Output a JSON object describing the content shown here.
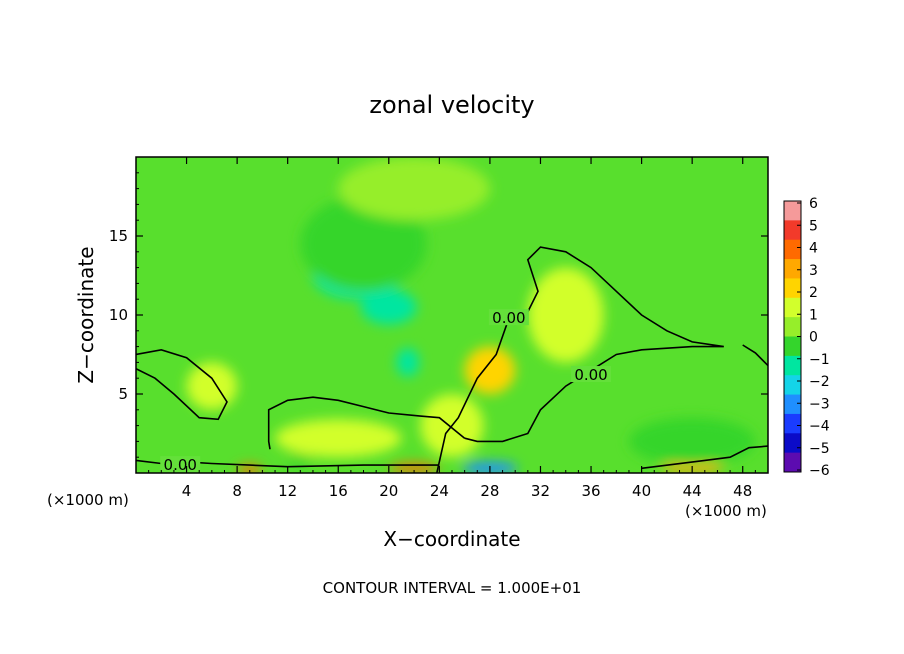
{
  "chart_data": {
    "type": "heatmap",
    "title": "zonal velocity",
    "xlabel": "X−coordinate",
    "ylabel": "Z−coordinate",
    "x_unit_left": "(×1000 m)",
    "x_unit_right": "(×1000 m)",
    "xlim": [
      0,
      50
    ],
    "ylim": [
      0,
      20
    ],
    "x_ticks": [
      4,
      8,
      12,
      16,
      20,
      24,
      28,
      32,
      36,
      40,
      44,
      48
    ],
    "y_ticks": [
      5,
      10,
      15
    ],
    "colorbar": {
      "ticks": [
        6,
        5,
        4,
        3,
        2,
        1,
        0,
        -1,
        -2,
        -3,
        -4,
        -5,
        -6
      ],
      "colors": [
        "#f59a9a",
        "#f23a2a",
        "#ff6a00",
        "#ffa800",
        "#ffd400",
        "#d2ff2c",
        "#96ee2a",
        "#34d52c",
        "#00e6a0",
        "#14d4e8",
        "#1f8fff",
        "#1a3cff",
        "#0b0bc8",
        "#5c0bb0"
      ]
    },
    "field_blobs": [
      {
        "x": 20,
        "z": 10.5,
        "value": -2.9,
        "sx": 2.2,
        "sz": 1.1
      },
      {
        "x": 17.5,
        "z": 12.5,
        "value": -2.0,
        "sx": 3.5,
        "sz": 1.5
      },
      {
        "x": 21.5,
        "z": 7.0,
        "value": -2.7,
        "sx": 0.9,
        "sz": 0.9
      },
      {
        "x": 18,
        "z": 14.5,
        "value": -1.0,
        "sx": 5,
        "sz": 3
      },
      {
        "x": 22,
        "z": 18,
        "value": -0.6,
        "sx": 6,
        "sz": 2
      },
      {
        "x": 28,
        "z": 6.5,
        "value": 1.5,
        "sx": 2,
        "sz": 1.5
      },
      {
        "x": 34,
        "z": 10,
        "value": 0.6,
        "sx": 3,
        "sz": 3
      },
      {
        "x": 16,
        "z": 2.2,
        "value": 0.9,
        "sx": 5,
        "sz": 1.2
      },
      {
        "x": 25,
        "z": 3,
        "value": 1.0,
        "sx": 2.5,
        "sz": 2
      },
      {
        "x": 9,
        "z": 0.2,
        "value": 4.0,
        "sx": 1.0,
        "sz": 0.3
      },
      {
        "x": 22,
        "z": 0.3,
        "value": 4.0,
        "sx": 2.0,
        "sz": 0.3
      },
      {
        "x": 28,
        "z": 0.3,
        "value": -4.5,
        "sx": 2.2,
        "sz": 0.4
      },
      {
        "x": 44,
        "z": 0.3,
        "value": 3.0,
        "sx": 2.5,
        "sz": 0.3
      },
      {
        "x": 44,
        "z": 2,
        "value": -1.3,
        "sx": 5,
        "sz": 1.5
      },
      {
        "x": 13,
        "z": 0.8,
        "value": -1.8,
        "sx": 1,
        "sz": 0.4
      },
      {
        "x": 6,
        "z": 5.5,
        "value": 0.3,
        "sx": 2,
        "sz": 1.5
      }
    ],
    "contours": [
      {
        "label": "0.00",
        "label_at": [
          29.5,
          9.8
        ],
        "points": [
          [
            23.8,
            0
          ],
          [
            24.5,
            2.5
          ],
          [
            25.5,
            3.5
          ],
          [
            27,
            6
          ],
          [
            28.5,
            7.5
          ],
          [
            29.5,
            9.8
          ],
          [
            31,
            10.2
          ],
          [
            31.8,
            11.5
          ],
          [
            31,
            13.5
          ],
          [
            32,
            14.3
          ],
          [
            34,
            14
          ],
          [
            36,
            13
          ],
          [
            38,
            11.5
          ],
          [
            40,
            10
          ],
          [
            42,
            9
          ],
          [
            44,
            8.3
          ],
          [
            46.5,
            8
          ],
          [
            44,
            8
          ],
          [
            40,
            7.8
          ],
          [
            38,
            7.5
          ],
          [
            36,
            6.5
          ],
          [
            34,
            5.5
          ],
          [
            32,
            4
          ],
          [
            31,
            2.5
          ],
          [
            29,
            2
          ],
          [
            27,
            2
          ],
          [
            26,
            2.2
          ]
        ]
      },
      {
        "label": "0.00",
        "label_at": [
          36,
          6.2
        ],
        "points": [
          [
            26,
            2.2
          ],
          [
            24,
            3.5
          ],
          [
            22.5,
            3.6
          ],
          [
            20,
            3.8
          ],
          [
            18,
            4.2
          ],
          [
            16,
            4.6
          ],
          [
            14,
            4.8
          ],
          [
            12,
            4.6
          ],
          [
            10.5,
            4
          ],
          [
            10.5,
            2
          ],
          [
            10.6,
            1.5
          ]
        ]
      },
      {
        "label": "0.00",
        "label_at": [
          3.5,
          0.5
        ],
        "points": [
          [
            0,
            0.8
          ],
          [
            2,
            0.6
          ],
          [
            4,
            0.7
          ],
          [
            6,
            0.6
          ],
          [
            9,
            0.5
          ],
          [
            12,
            0.4
          ],
          [
            18,
            0.5
          ],
          [
            24,
            0.5
          ]
        ]
      },
      {
        "label": "",
        "label_at": [
          0,
          0
        ],
        "points": [
          [
            0,
            7.5
          ],
          [
            2,
            7.8
          ],
          [
            4,
            7.3
          ],
          [
            6,
            6
          ],
          [
            7.2,
            4.5
          ],
          [
            6.5,
            3.4
          ],
          [
            5,
            3.5
          ],
          [
            3,
            5
          ],
          [
            1.5,
            6
          ],
          [
            0,
            6.6
          ]
        ]
      },
      {
        "label": "",
        "label_at": [
          0,
          0
        ],
        "points": [
          [
            40,
            0.3
          ],
          [
            45,
            0.8
          ],
          [
            47,
            1
          ],
          [
            48.5,
            1.6
          ],
          [
            50,
            1.7
          ]
        ]
      },
      {
        "label": "",
        "label_at": [
          0,
          0
        ],
        "points": [
          [
            50,
            6.8
          ],
          [
            49,
            7.6
          ],
          [
            48,
            8.1
          ]
        ]
      }
    ],
    "footer": "CONTOUR INTERVAL = 1.000E+01"
  }
}
